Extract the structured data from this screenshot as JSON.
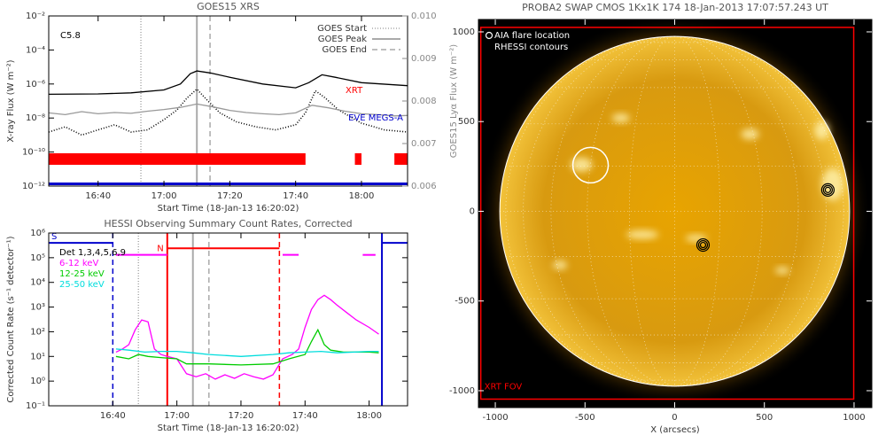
{
  "chart_data": [
    {
      "type": "line",
      "title": "GOES15 XRS",
      "xlabel": "Start Time (18-Jan-13 16:20:02)",
      "ylabel": "X-ray Flux (W m⁻²)",
      "y2label": "GOES15 Lyα Flux (W m⁻²)",
      "annotation": "C5.8",
      "xlim": [
        "16:25",
        "18:14"
      ],
      "xticks": [
        "16:40",
        "17:00",
        "17:20",
        "17:40",
        "18:00"
      ],
      "yscale": "log",
      "ylim": [
        1e-12,
        0.01
      ],
      "yticks": [
        {
          "value": 1e-12,
          "label": "10⁻¹²"
        },
        {
          "value": 1e-10,
          "label": "10⁻¹⁰"
        },
        {
          "value": 1e-08,
          "label": "10⁻⁸"
        },
        {
          "value": 1e-06,
          "label": "10⁻⁶"
        },
        {
          "value": 0.0001,
          "label": "10⁻⁴"
        },
        {
          "value": 0.01,
          "label": "10⁻²"
        }
      ],
      "y2lim": [
        0.006,
        0.01
      ],
      "y2ticks": [
        0.006,
        0.007,
        0.008,
        0.009,
        {
          "value": 0.01,
          "label": "0.010"
        }
      ],
      "series": [
        {
          "color": "#000000",
          "style": "solid",
          "x": [
            "16:25",
            "16:40",
            "16:50",
            "17:00",
            "17:05",
            "17:08",
            "17:10",
            "17:14",
            "17:20",
            "17:30",
            "17:40",
            "17:44",
            "17:48",
            "17:52",
            "18:00",
            "18:14"
          ],
          "values": [
            2.5e-07,
            2.6e-07,
            3e-07,
            4.5e-07,
            1e-06,
            4e-06,
            5.8e-06,
            4.5e-06,
            2.5e-06,
            1e-06,
            6e-07,
            1.2e-06,
            3.5e-06,
            2.5e-06,
            1.2e-06,
            8e-07
          ]
        },
        {
          "color": "#000000",
          "style": "dotted",
          "x": [
            "16:25",
            "16:30",
            "16:35",
            "16:40",
            "16:45",
            "16:50",
            "16:55",
            "17:00",
            "17:04",
            "17:07",
            "17:10",
            "17:13",
            "17:17",
            "17:22",
            "17:28",
            "17:34",
            "17:40",
            "17:43",
            "17:46",
            "17:49",
            "17:53",
            "18:00",
            "18:07",
            "18:14"
          ],
          "values": [
            1.5e-09,
            3e-09,
            1e-09,
            2e-09,
            4e-09,
            1.5e-09,
            2e-09,
            8e-09,
            3e-08,
            1.5e-07,
            5e-07,
            1.2e-07,
            2e-08,
            6e-09,
            3e-09,
            2e-09,
            4e-09,
            2e-08,
            4e-07,
            1.5e-07,
            3e-08,
            5e-09,
            2e-09,
            1.5e-09
          ]
        },
        {
          "color": "#999999",
          "style": "solid",
          "axis": "y2",
          "x": [
            "16:25",
            "16:30",
            "16:35",
            "16:40",
            "16:45",
            "16:50",
            "16:55",
            "17:00",
            "17:05",
            "17:10",
            "17:15",
            "17:20",
            "17:25",
            "17:30",
            "17:35",
            "17:40",
            "17:45",
            "17:50",
            "17:55",
            "18:00",
            "18:05",
            "18:10",
            "18:14"
          ],
          "values": [
            0.00772,
            0.00768,
            0.00775,
            0.0077,
            0.00773,
            0.00771,
            0.00776,
            0.0078,
            0.00785,
            0.00793,
            0.00786,
            0.00778,
            0.00773,
            0.0077,
            0.00768,
            0.00772,
            0.0079,
            0.00784,
            0.00776,
            0.0077,
            0.00768,
            0.00765,
            0.00766
          ]
        }
      ],
      "coverage": [
        {
          "name": "XRT",
          "color": "#ff0000",
          "intervals": [
            [
              "16:25",
              "17:43"
            ],
            [
              "17:58",
              "18:00"
            ],
            [
              "18:10",
              "18:14"
            ]
          ]
        },
        {
          "name": "EVE MEGS-A",
          "color": "#0000cc",
          "intervals": [
            [
              "16:25",
              "18:14"
            ]
          ]
        }
      ],
      "markers": [
        {
          "name": "GOES Start",
          "x": "16:53",
          "color": "#aaaaaa",
          "style": "dotted"
        },
        {
          "name": "GOES Peak",
          "x": "17:10",
          "color": "#aaaaaa",
          "style": "solid"
        },
        {
          "name": "GOES End",
          "x": "17:14",
          "color": "#aaaaaa",
          "style": "dashed"
        }
      ]
    },
    {
      "type": "line",
      "title": "HESSI Observing Summary Count Rates, Corrected",
      "xlabel": "Start Time (18-Jan-13 16:20:02)",
      "ylabel": "Corrected Count Rate (s⁻¹ detector⁻¹)",
      "legend_title": "Det 1,3,4,5,6,9",
      "xlim": [
        "16:20",
        "18:12"
      ],
      "xticks": [
        "16:40",
        "17:00",
        "17:20",
        "17:40",
        "18:00"
      ],
      "yscale": "log",
      "ylim": [
        0.1,
        1000000
      ],
      "yticks": [
        {
          "value": 0.1,
          "label": "10⁻¹"
        },
        {
          "value": 1,
          "label": "10⁰"
        },
        {
          "value": 10,
          "label": "10¹"
        },
        {
          "value": 100,
          "label": "10²"
        },
        {
          "value": 1000,
          "label": "10³"
        },
        {
          "value": 10000,
          "label": "10⁴"
        },
        {
          "value": 100000,
          "label": "10⁵"
        },
        {
          "value": 1000000,
          "label": "10⁶"
        }
      ],
      "series": [
        {
          "name": "6-12 keV",
          "color": "#ff00ff",
          "style": "solid",
          "x": [
            "16:41",
            "16:43",
            "16:45",
            "16:47",
            "16:49",
            "16:51",
            "16:53",
            "16:55",
            "16:57",
            "17:00",
            "17:03",
            "17:06",
            "17:09",
            "17:12",
            "17:15",
            "17:18",
            "17:21",
            "17:24",
            "17:27",
            "17:30",
            "17:33",
            "17:36",
            "17:38",
            "17:40",
            "17:42",
            "17:44",
            "17:46",
            "17:48",
            "17:50",
            "17:53",
            "17:56",
            "18:00",
            "18:03"
          ],
          "values": [
            15,
            20,
            30,
            120,
            300,
            250,
            20,
            12,
            10,
            8,
            2,
            1.5,
            2,
            1.2,
            1.8,
            1.3,
            2,
            1.5,
            1.2,
            1.8,
            8,
            12,
            20,
            150,
            800,
            2000,
            3000,
            2000,
            1200,
            600,
            300,
            150,
            80
          ]
        },
        {
          "name": "12-25 keV",
          "color": "#00cc00",
          "style": "solid",
          "x": [
            "16:41",
            "16:45",
            "16:48",
            "16:51",
            "16:55",
            "17:00",
            "17:03",
            "17:10",
            "17:20",
            "17:30",
            "17:35",
            "17:40",
            "17:42",
            "17:44",
            "17:46",
            "17:48",
            "17:52",
            "18:00",
            "18:03"
          ],
          "values": [
            10,
            8,
            12,
            10,
            9,
            8,
            5,
            5,
            4.5,
            5,
            8,
            12,
            40,
            120,
            30,
            18,
            15,
            15,
            14
          ]
        },
        {
          "name": "25-50 keV",
          "color": "#00dddd",
          "style": "solid",
          "x": [
            "16:41",
            "16:45",
            "16:50",
            "16:55",
            "17:00",
            "17:05",
            "17:10",
            "17:20",
            "17:30",
            "17:35",
            "17:40",
            "17:45",
            "17:50",
            "18:00",
            "18:03"
          ],
          "values": [
            20,
            18,
            15,
            16,
            16,
            14,
            12,
            10,
            12,
            14,
            15,
            16,
            14,
            16,
            16
          ]
        }
      ],
      "flags": [
        {
          "label": "S",
          "color": "#0000cc",
          "y": 400000,
          "intervals": [
            [
              "16:20",
              "16:40"
            ],
            [
              "18:04",
              "18:12"
            ]
          ]
        },
        {
          "label": "N",
          "color": "#ff0000",
          "y": 240000,
          "intervals": [
            [
              "16:57",
              "17:32"
            ]
          ]
        },
        {
          "color": "#ff00ff",
          "y": 130000,
          "intervals": [
            [
              "16:41",
              "16:57"
            ],
            [
              "17:33",
              "17:38"
            ],
            [
              "17:58",
              "18:02"
            ]
          ]
        }
      ],
      "markers": [
        {
          "x": "16:40",
          "color": "#0000cc",
          "style": "dashed"
        },
        {
          "x": "18:04",
          "color": "#0000cc",
          "style": "solid"
        },
        {
          "x": "16:57",
          "color": "#ff0000",
          "style": "solid"
        },
        {
          "x": "17:32",
          "color": "#ff0000",
          "style": "dashed"
        },
        {
          "x": "16:48",
          "color": "#aaaaaa",
          "style": "dotted"
        },
        {
          "x": "17:05",
          "color": "#aaaaaa",
          "style": "solid"
        },
        {
          "x": "17:10",
          "color": "#aaaaaa",
          "style": "dashed"
        }
      ]
    },
    {
      "type": "image",
      "title": "PROBA2 SWAP CMOS 1Kx1K 174 18-Jan-2013 17:07:57.243 UT",
      "xlabel": "X (arcsecs)",
      "xlim": [
        -1094,
        1099
      ],
      "ylim": [
        -1094,
        1069
      ],
      "xticks": [
        -1000,
        -500,
        0,
        500,
        1000
      ],
      "yticks": [
        -1000,
        -500,
        0,
        500,
        1000
      ],
      "aia_flare": {
        "name": "AIA flare location",
        "color": "#ffffff",
        "x": -469,
        "y": 257
      },
      "rhessi_contours": {
        "name": "RHESSI contours",
        "color": "#000000",
        "points": [
          {
            "x": 854,
            "y": 119
          },
          {
            "x": 158,
            "y": -188
          }
        ]
      },
      "xrt_fov": {
        "name": "XRT FOV",
        "color": "#ff0000",
        "x": [
          -1081,
          998
        ],
        "y": [
          -1047,
          1025
        ]
      }
    }
  ]
}
